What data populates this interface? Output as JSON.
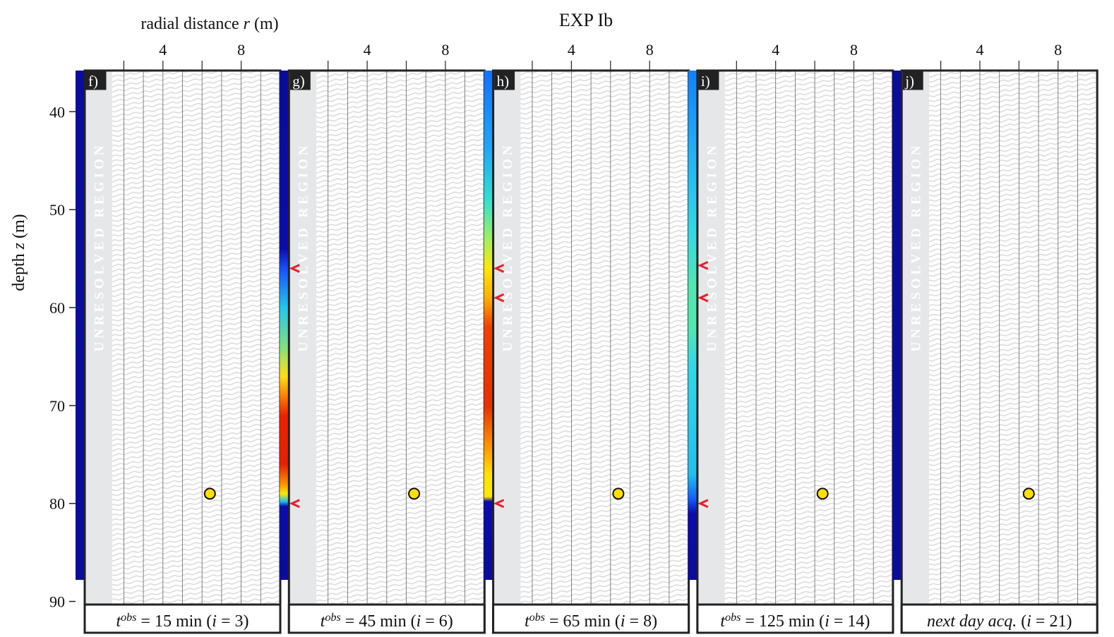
{
  "chart_data": {
    "type": "image-panels",
    "title": "EXP Ib",
    "xlabel": [
      {
        "text": "radial distance "
      },
      {
        "text": "r",
        "style": "italic"
      },
      {
        "text": " (m)"
      }
    ],
    "ylabel": [
      {
        "text": "depth "
      },
      {
        "text": "z",
        "style": "italic"
      },
      {
        "text": " (m)"
      }
    ],
    "xlim": [
      0,
      10
    ],
    "ylim": [
      35.8,
      93.2
    ],
    "y_inverted": true,
    "xticks": [
      4,
      8
    ],
    "x_minor_ticks": [
      2,
      6
    ],
    "xgrid": [
      2,
      3,
      4,
      5,
      6,
      7,
      8,
      9
    ],
    "yticks": [
      40,
      50,
      60,
      70,
      80,
      90
    ],
    "image_zlim": [
      35.8,
      90.7
    ],
    "colorbar_zlim": [
      35.8,
      87.8
    ],
    "unresolved": {
      "label": "UNRESOLVED REGION",
      "xlim": [
        0,
        1.4
      ]
    },
    "arrow_color": "#e8202a",
    "source_color": "#ffe000",
    "panels": [
      {
        "label": "f)",
        "caption": [
          {
            "text": "t",
            "style": "italic"
          },
          {
            "text": "obs",
            "style": "italic-sup"
          },
          {
            "text": " = 15 min ("
          },
          {
            "text": "i",
            "style": "italic"
          },
          {
            "text": " = 3)"
          }
        ],
        "colorbar": [
          {
            "z": 35.8,
            "color": "#0b0b9c"
          },
          {
            "z": 87.8,
            "color": "#0b0b9c"
          }
        ],
        "arrows": [],
        "source": {
          "r": 6.4,
          "z": 79
        }
      },
      {
        "label": "g)",
        "caption": [
          {
            "text": "t",
            "style": "italic"
          },
          {
            "text": "obs",
            "style": "italic-sup"
          },
          {
            "text": " = 45 min ("
          },
          {
            "text": "i",
            "style": "italic"
          },
          {
            "text": " = 6)"
          }
        ],
        "colorbar": [
          {
            "z": 35.8,
            "color": "#0b0b9c"
          },
          {
            "z": 54,
            "color": "#0b0bb0"
          },
          {
            "z": 56,
            "color": "#1450ff"
          },
          {
            "z": 60,
            "color": "#20c8f0"
          },
          {
            "z": 64,
            "color": "#80e080"
          },
          {
            "z": 67,
            "color": "#ffe010"
          },
          {
            "z": 69,
            "color": "#ff8000"
          },
          {
            "z": 71,
            "color": "#f02000"
          },
          {
            "z": 76,
            "color": "#e82000"
          },
          {
            "z": 78,
            "color": "#ff9000"
          },
          {
            "z": 79,
            "color": "#ffe800"
          },
          {
            "z": 79.8,
            "color": "#20c0f0"
          },
          {
            "z": 80.3,
            "color": "#0b0bb0"
          },
          {
            "z": 87.8,
            "color": "#0b0b9c"
          }
        ],
        "arrows": [
          56,
          80
        ],
        "source": {
          "r": 6.4,
          "z": 79
        }
      },
      {
        "label": "h)",
        "caption": [
          {
            "text": "t",
            "style": "italic"
          },
          {
            "text": "obs",
            "style": "italic-sup"
          },
          {
            "text": " = 65 min ("
          },
          {
            "text": "i",
            "style": "italic"
          },
          {
            "text": " = 8)"
          }
        ],
        "colorbar": [
          {
            "z": 35.8,
            "color": "#1070ff"
          },
          {
            "z": 44,
            "color": "#20a8f8"
          },
          {
            "z": 49,
            "color": "#30e0d0"
          },
          {
            "z": 53,
            "color": "#a0f060"
          },
          {
            "z": 56,
            "color": "#ffe800"
          },
          {
            "z": 59,
            "color": "#ffb000"
          },
          {
            "z": 62,
            "color": "#f04000"
          },
          {
            "z": 70,
            "color": "#e83000"
          },
          {
            "z": 74,
            "color": "#ff9000"
          },
          {
            "z": 77,
            "color": "#ffe000"
          },
          {
            "z": 79.3,
            "color": "#ffe800"
          },
          {
            "z": 79.8,
            "color": "#0b0bb0"
          },
          {
            "z": 87.8,
            "color": "#0b0b9c"
          }
        ],
        "arrows": [
          56,
          59,
          80
        ],
        "source": {
          "r": 6.4,
          "z": 79
        }
      },
      {
        "label": "i)",
        "caption": [
          {
            "text": "t",
            "style": "italic"
          },
          {
            "text": "obs",
            "style": "italic-sup"
          },
          {
            "text": " = 125 min ("
          },
          {
            "text": "i",
            "style": "italic"
          },
          {
            "text": " = 14)"
          }
        ],
        "colorbar": [
          {
            "z": 35.8,
            "color": "#1080ff"
          },
          {
            "z": 44,
            "color": "#20b0f8"
          },
          {
            "z": 52,
            "color": "#30d8e8"
          },
          {
            "z": 58,
            "color": "#50e8b0"
          },
          {
            "z": 62,
            "color": "#50e8b0"
          },
          {
            "z": 66,
            "color": "#30d8e8"
          },
          {
            "z": 77,
            "color": "#20c0f0"
          },
          {
            "z": 79.5,
            "color": "#1060ff"
          },
          {
            "z": 81,
            "color": "#0b0bb0"
          },
          {
            "z": 87.8,
            "color": "#0b0b9c"
          }
        ],
        "arrows": [
          55.7,
          59,
          80
        ],
        "source": {
          "r": 6.4,
          "z": 79
        }
      },
      {
        "label": "j)",
        "caption": [
          {
            "text": "next day acq.",
            "style": "italic"
          },
          {
            "text": " ("
          },
          {
            "text": "i",
            "style": "italic"
          },
          {
            "text": " = 21)"
          }
        ],
        "colorbar": [
          {
            "z": 35.8,
            "color": "#0b0b9c"
          },
          {
            "z": 87.8,
            "color": "#0b0b9c"
          }
        ],
        "arrows": [],
        "source": {
          "r": 6.5,
          "z": 79
        }
      }
    ]
  }
}
